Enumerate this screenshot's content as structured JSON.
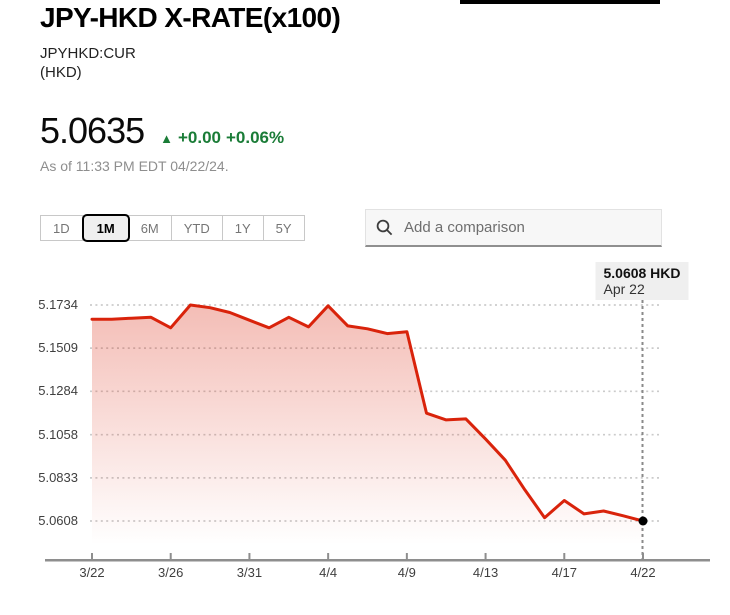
{
  "header": {
    "title": "JPY-HKD X-RATE(x100)",
    "symbol": "JPYHKD:CUR",
    "currency_note": "(HKD)",
    "price": "5.0635",
    "change_direction": "up",
    "up_arrow": "▲",
    "change_value": "+0.00",
    "change_percent": "+0.06%",
    "as_of": "As of 11:33 PM EDT 04/22/24."
  },
  "controls": {
    "ranges": [
      {
        "label": "1D",
        "selected": false
      },
      {
        "label": "1M",
        "selected": true
      },
      {
        "label": "6M",
        "selected": false
      },
      {
        "label": "YTD",
        "selected": false
      },
      {
        "label": "1Y",
        "selected": false
      },
      {
        "label": "5Y",
        "selected": false
      }
    ],
    "comparison_placeholder": "Add a comparison"
  },
  "tooltip": {
    "price_line": "5.0608 HKD",
    "date_line": "Apr 22"
  },
  "colors": {
    "line_red": "#d9230b",
    "positive_green": "#1a7c37",
    "grid": "#cbcbcb",
    "axis": "#8e8e8e",
    "crosshair": "#8a8a8a",
    "tooltip_bg": "#efefef",
    "muted_text": "#8e8e8e"
  },
  "chart_data": {
    "type": "area",
    "title": "JPY-HKD X-RATE (1M)",
    "xlabel": "",
    "ylabel": "HKD",
    "grid": true,
    "legend": false,
    "y_range": [
      5.0608,
      5.1734
    ],
    "y_ticks": [
      "5.1734",
      "5.1509",
      "5.1284",
      "5.1058",
      "5.0833",
      "5.0608"
    ],
    "x_ticks": [
      "3/22",
      "3/26",
      "3/31",
      "4/4",
      "4/9",
      "4/13",
      "4/17",
      "4/22"
    ],
    "x_tick_indices": [
      0,
      4,
      8,
      12,
      16,
      20,
      24,
      28
    ],
    "values": [
      5.166,
      5.166,
      5.1665,
      5.167,
      5.1615,
      5.1734,
      5.172,
      5.1695,
      5.1655,
      5.1615,
      5.167,
      5.162,
      5.173,
      5.1625,
      5.161,
      5.1585,
      5.1595,
      5.117,
      5.1135,
      5.114,
      5.1035,
      5.0925,
      5.077,
      5.0625,
      5.0715,
      5.0645,
      5.066,
      5.0635,
      5.0608
    ],
    "last_point": {
      "date": "Apr 22",
      "value": 5.0608,
      "label": "5.0608 HKD"
    }
  }
}
